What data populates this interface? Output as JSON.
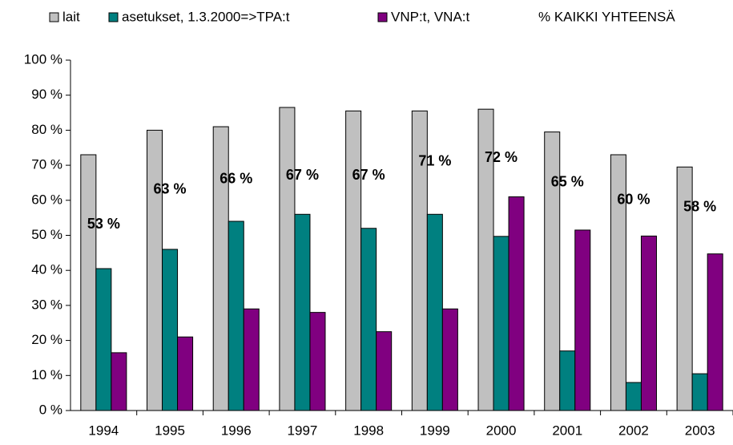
{
  "chart_data": {
    "type": "bar",
    "categories": [
      "1994",
      "1995",
      "1996",
      "1997",
      "1998",
      "1999",
      "2000",
      "2001",
      "2002",
      "2003"
    ],
    "series": [
      {
        "name": "lait",
        "color": "#c0c0c0",
        "values": [
          73,
          80,
          81,
          86.5,
          85.5,
          85.5,
          86,
          79.5,
          73,
          69.5
        ]
      },
      {
        "name": "asetukset, 1.3.2000=>TPA:t",
        "color": "#008080",
        "values": [
          40.5,
          46,
          54,
          56,
          52,
          56,
          49.7,
          17,
          8,
          10.5
        ]
      },
      {
        "name": "VNP:t, VNA:t",
        "color": "#800080",
        "values": [
          16.5,
          21,
          29,
          28,
          22.5,
          29,
          61,
          51.5,
          49.8,
          44.7
        ]
      },
      {
        "name": "% KAIKKI YHTEENSÄ",
        "display": "labels",
        "values": [
          53,
          63,
          66,
          67,
          67,
          71,
          72,
          65,
          60,
          58
        ],
        "value_labels": [
          "53 %",
          "63 %",
          "66 %",
          "67 %",
          "67 %",
          "71 %",
          "72 %",
          "65 %",
          "60 %",
          "58 %"
        ]
      }
    ],
    "ylim": [
      0,
      100
    ],
    "yticks": [
      {
        "value": 0,
        "label": "0 %"
      },
      {
        "value": 10,
        "label": "10 %"
      },
      {
        "value": 20,
        "label": "20 %"
      },
      {
        "value": 30,
        "label": "30 %"
      },
      {
        "value": 40,
        "label": "40 %"
      },
      {
        "value": 50,
        "label": "50 %"
      },
      {
        "value": 60,
        "label": "60 %"
      },
      {
        "value": 70,
        "label": "70 %"
      },
      {
        "value": 80,
        "label": "80 %"
      },
      {
        "value": 90,
        "label": "90 %"
      },
      {
        "value": 100,
        "label": "100 %"
      }
    ],
    "grid": false,
    "legend": "top"
  }
}
